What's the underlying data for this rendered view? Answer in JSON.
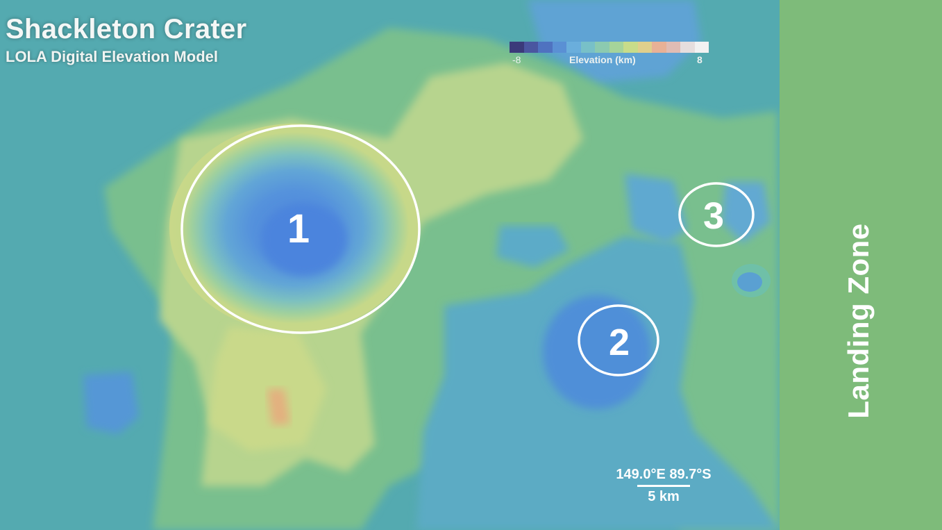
{
  "map": {
    "title": "Shackleton Crater",
    "subtitle": "LOLA Digital Elevation Model",
    "legend": {
      "label": "Elevation (km)",
      "min": "-8",
      "max": "8",
      "colors": [
        "#3b3a7a",
        "#4a56a0",
        "#4f72c0",
        "#5a90d4",
        "#6aaedc",
        "#78c0c8",
        "#8ccab0",
        "#a6d49a",
        "#c8dc8a",
        "#e0cf8c",
        "#e8b196",
        "#e0bcb4",
        "#e6dede",
        "#f2f2f2"
      ]
    },
    "regions": [
      {
        "number": "1"
      },
      {
        "number": "2"
      },
      {
        "number": "3"
      }
    ],
    "landing_zone": {
      "label": "Landing Zone",
      "color": "#7ebb7a"
    },
    "coordinates": "149.0°E 89.7°S",
    "scale_bar": "5 km"
  }
}
